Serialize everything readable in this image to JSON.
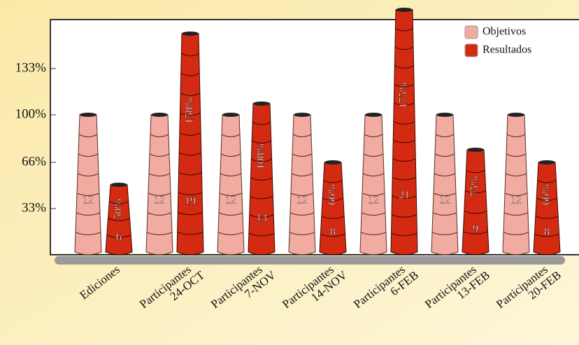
{
  "chart_data": {
    "type": "bar",
    "categories": [
      [
        "Ediciones"
      ],
      [
        "Participantes",
        "24-OCT"
      ],
      [
        "Participantes",
        "7-NOV"
      ],
      [
        "Participantes",
        "14-NOV"
      ],
      [
        "Participantes",
        "6-FEB"
      ],
      [
        "Participantes",
        "13-FEB"
      ],
      [
        "Participantes",
        "20-FEB"
      ]
    ],
    "series": [
      {
        "name": "Objetivos",
        "color": "#f2aba0",
        "values": [
          100,
          100,
          100,
          100,
          100,
          100,
          100
        ],
        "counts": [
          12,
          12,
          12,
          12,
          12,
          12,
          12
        ]
      },
      {
        "name": "Resultados",
        "color": "#d42a12",
        "values": [
          50,
          158,
          108,
          66,
          175,
          75,
          66
        ],
        "value_labels": [
          "50%",
          "158%",
          "108%",
          "66%",
          "175%",
          "75%",
          "66%"
        ],
        "counts": [
          6,
          19,
          13,
          8,
          21,
          9,
          8
        ]
      }
    ],
    "ylim": [
      0,
      168
    ],
    "yticks": [
      {
        "value": 33,
        "label": "33%"
      },
      {
        "value": 66,
        "label": "66%"
      },
      {
        "value": 100,
        "label": "100%"
      },
      {
        "value": 133,
        "label": "133%"
      }
    ],
    "legend": "top-right"
  }
}
